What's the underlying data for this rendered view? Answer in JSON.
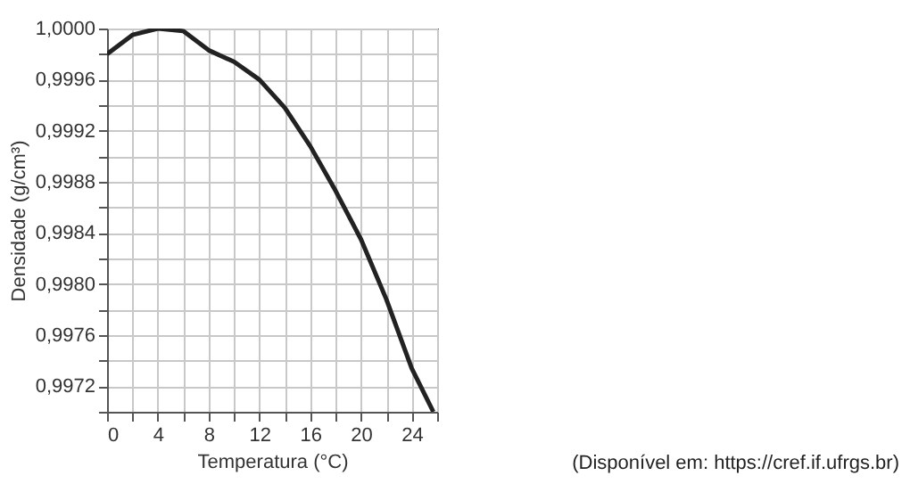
{
  "chart_data": {
    "type": "line",
    "xlabel": "Temperatura (°C)",
    "ylabel": "Densidade (g/cm³)",
    "x": [
      0,
      2,
      4,
      6,
      8,
      10,
      12,
      14,
      16,
      18,
      20,
      22,
      24,
      25.7
    ],
    "series": [
      {
        "color": "#222222",
        "values": [
          0.9998,
          0.99995,
          1.0,
          0.99998,
          0.99983,
          0.99974,
          0.9996,
          0.99938,
          0.99908,
          0.99873,
          0.99835,
          0.99788,
          0.99734,
          0.997
        ]
      }
    ],
    "xlim": [
      0,
      26
    ],
    "xticks": [
      0,
      {
        "value": 2,
        "label": null
      },
      4,
      {
        "value": 6,
        "label": null
      },
      8,
      {
        "value": 10,
        "label": null
      },
      12,
      {
        "value": 14,
        "label": null
      },
      16,
      {
        "value": 18,
        "label": null
      },
      20,
      {
        "value": 22,
        "label": null
      },
      24,
      {
        "value": 26,
        "label": null
      }
    ],
    "ylim": [
      0.997,
      1.0
    ],
    "yticks": [
      {
        "value": 0.997,
        "label": null
      },
      {
        "value": 0.9972,
        "label": "0,9972"
      },
      {
        "value": 0.9974,
        "label": null
      },
      {
        "value": 0.9976,
        "label": "0,9976"
      },
      {
        "value": 0.9978,
        "label": null
      },
      {
        "value": 0.998,
        "label": "0,9980"
      },
      {
        "value": 0.9982,
        "label": null
      },
      {
        "value": 0.9984,
        "label": "0,9984"
      },
      {
        "value": 0.9986,
        "label": null
      },
      {
        "value": 0.9988,
        "label": "0,9988"
      },
      {
        "value": 0.999,
        "label": null
      },
      {
        "value": 0.9992,
        "label": "0,9992"
      },
      {
        "value": 0.9994,
        "label": null
      },
      {
        "value": 0.9996,
        "label": "0,9996"
      },
      {
        "value": 0.9998,
        "label": null
      },
      {
        "value": 1.0,
        "label": "1,0000"
      }
    ],
    "grid": true,
    "marker": "none",
    "line_style": "solid",
    "annotations": [
      "(Disponível em: https://cref.if.ufrgs.br)"
    ]
  }
}
